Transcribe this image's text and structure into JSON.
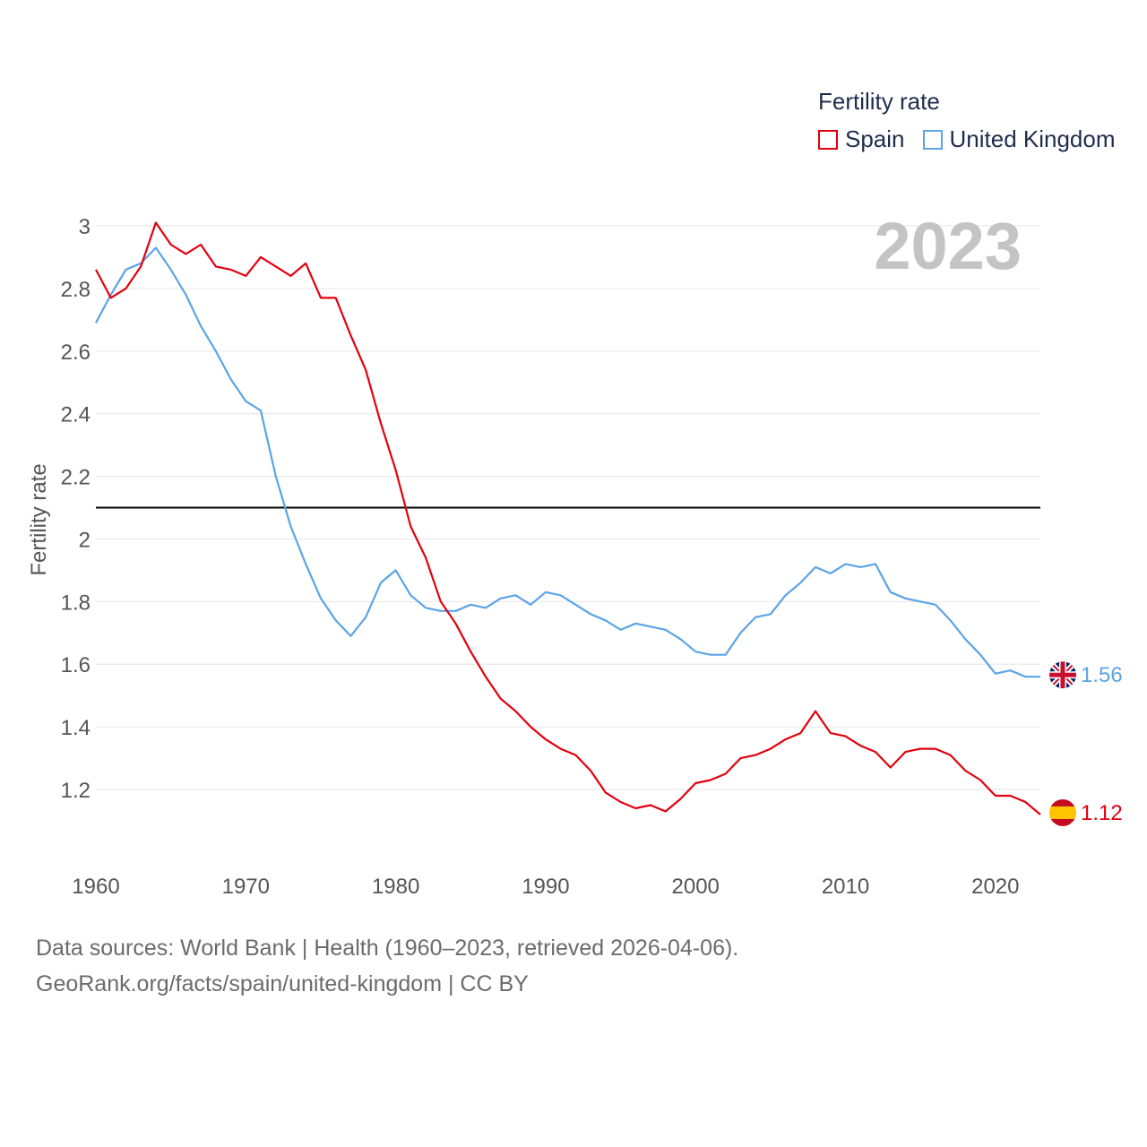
{
  "chart_data": {
    "type": "line",
    "legend_title": "Fertility rate",
    "ylabel": "Fertility rate",
    "year_label": "2023",
    "reference_line": 2.1,
    "ylim": [
      1.0,
      3.05
    ],
    "xlim": [
      1960,
      2023
    ],
    "y_ticks": [
      1.2,
      1.4,
      1.6,
      1.8,
      2,
      2.2,
      2.4,
      2.6,
      2.8,
      3
    ],
    "y_tick_labels": [
      "1.2",
      "1.4",
      "1.6",
      "1.8",
      "2",
      "2.2",
      "2.4",
      "2.6",
      "2.8",
      "3"
    ],
    "x_ticks": [
      1960,
      1970,
      1980,
      1990,
      2000,
      2010,
      2020
    ],
    "x_tick_labels": [
      "1960",
      "1970",
      "1980",
      "1990",
      "2000",
      "2010",
      "2020"
    ],
    "x": [
      1960,
      1961,
      1962,
      1963,
      1964,
      1965,
      1966,
      1967,
      1968,
      1969,
      1970,
      1971,
      1972,
      1973,
      1974,
      1975,
      1976,
      1977,
      1978,
      1979,
      1980,
      1981,
      1982,
      1983,
      1984,
      1985,
      1986,
      1987,
      1988,
      1989,
      1990,
      1991,
      1992,
      1993,
      1994,
      1995,
      1996,
      1997,
      1998,
      1999,
      2000,
      2001,
      2002,
      2003,
      2004,
      2005,
      2006,
      2007,
      2008,
      2009,
      2010,
      2011,
      2012,
      2013,
      2014,
      2015,
      2016,
      2017,
      2018,
      2019,
      2020,
      2021,
      2022,
      2023
    ],
    "series": [
      {
        "name": "Spain",
        "color": "#e3000f",
        "end_label": "1.12",
        "flag": "spain-flag",
        "values": [
          2.86,
          2.77,
          2.8,
          2.87,
          3.01,
          2.94,
          2.91,
          2.94,
          2.87,
          2.86,
          2.84,
          2.9,
          2.87,
          2.84,
          2.88,
          2.77,
          2.77,
          2.65,
          2.54,
          2.37,
          2.22,
          2.04,
          1.94,
          1.8,
          1.73,
          1.64,
          1.56,
          1.49,
          1.45,
          1.4,
          1.36,
          1.33,
          1.31,
          1.26,
          1.19,
          1.16,
          1.14,
          1.15,
          1.13,
          1.17,
          1.22,
          1.23,
          1.25,
          1.3,
          1.31,
          1.33,
          1.36,
          1.38,
          1.45,
          1.38,
          1.37,
          1.34,
          1.32,
          1.27,
          1.32,
          1.33,
          1.33,
          1.31,
          1.26,
          1.23,
          1.18,
          1.18,
          1.16,
          1.12
        ]
      },
      {
        "name": "United Kingdom",
        "color": "#5ba4e5",
        "end_label": "1.56",
        "flag": "uk-flag",
        "values": [
          2.69,
          2.78,
          2.86,
          2.88,
          2.93,
          2.86,
          2.78,
          2.68,
          2.6,
          2.51,
          2.44,
          2.41,
          2.2,
          2.04,
          1.92,
          1.81,
          1.74,
          1.69,
          1.75,
          1.86,
          1.9,
          1.82,
          1.78,
          1.77,
          1.77,
          1.79,
          1.78,
          1.81,
          1.82,
          1.79,
          1.83,
          1.82,
          1.79,
          1.76,
          1.74,
          1.71,
          1.73,
          1.72,
          1.71,
          1.68,
          1.64,
          1.63,
          1.63,
          1.7,
          1.75,
          1.76,
          1.82,
          1.86,
          1.91,
          1.89,
          1.92,
          1.91,
          1.92,
          1.83,
          1.81,
          1.8,
          1.79,
          1.74,
          1.68,
          1.63,
          1.57,
          1.58,
          1.56,
          1.56
        ]
      }
    ]
  },
  "sources": {
    "line1": "Data sources: World Bank | Health (1960–2023, retrieved 2026-04-06).",
    "line2": "GeoRank.org/facts/spain/united-kingdom | CC BY"
  }
}
